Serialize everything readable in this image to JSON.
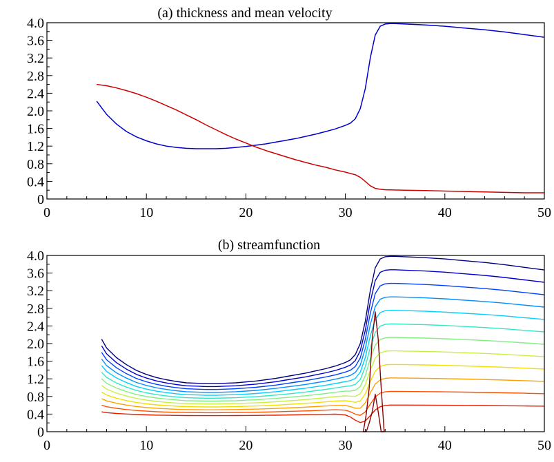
{
  "chart_data": [
    {
      "type": "line",
      "title": "(a) thickness and mean velocity",
      "xlim": [
        0,
        50
      ],
      "ylim": [
        0,
        4.0
      ],
      "xticks": [
        "0",
        "10",
        "20",
        "30",
        "40",
        "50"
      ],
      "yticks": [
        "0",
        "0.4",
        "0.8",
        "1.2",
        "1.6",
        "2.0",
        "2.4",
        "2.8",
        "3.2",
        "3.6",
        "4.0"
      ],
      "grid": false,
      "series": [
        {
          "color": "#0000cc",
          "x": [
            5,
            6,
            7,
            8,
            9,
            10,
            11,
            12,
            13,
            14,
            15,
            16,
            17,
            18,
            19,
            20,
            21,
            22,
            23,
            24,
            25,
            26,
            27,
            28,
            29,
            30,
            30.5,
            31,
            31.5,
            32,
            32.5,
            33,
            33.5,
            34,
            34.5,
            35,
            36,
            38,
            40,
            42,
            44,
            46,
            48,
            50
          ],
          "y": [
            2.22,
            1.92,
            1.7,
            1.53,
            1.41,
            1.32,
            1.25,
            1.2,
            1.17,
            1.15,
            1.14,
            1.14,
            1.14,
            1.15,
            1.17,
            1.19,
            1.22,
            1.25,
            1.29,
            1.33,
            1.37,
            1.42,
            1.47,
            1.53,
            1.59,
            1.67,
            1.72,
            1.82,
            2.05,
            2.5,
            3.2,
            3.72,
            3.92,
            3.97,
            3.98,
            3.98,
            3.97,
            3.95,
            3.92,
            3.88,
            3.84,
            3.79,
            3.73,
            3.67
          ]
        },
        {
          "color": "#cc0000",
          "x": [
            5,
            6,
            7,
            8,
            9,
            10,
            11,
            12,
            13,
            14,
            15,
            16,
            17,
            18,
            19,
            20,
            21,
            22,
            23,
            24,
            25,
            26,
            27,
            28,
            29,
            30,
            31,
            31.5,
            32,
            32.5,
            33,
            33.5,
            34,
            36,
            38,
            40,
            42,
            44,
            46,
            48,
            50
          ],
          "y": [
            2.6,
            2.57,
            2.52,
            2.46,
            2.39,
            2.31,
            2.22,
            2.12,
            2.02,
            1.91,
            1.8,
            1.68,
            1.57,
            1.46,
            1.36,
            1.27,
            1.18,
            1.1,
            1.03,
            0.96,
            0.89,
            0.83,
            0.77,
            0.72,
            0.66,
            0.61,
            0.55,
            0.49,
            0.4,
            0.3,
            0.24,
            0.22,
            0.21,
            0.2,
            0.19,
            0.18,
            0.17,
            0.16,
            0.15,
            0.14,
            0.14
          ]
        }
      ]
    },
    {
      "type": "line",
      "title": "(b) streamfunction",
      "xlim": [
        0,
        50
      ],
      "ylim": [
        0,
        4.0
      ],
      "xticks": [
        "0",
        "10",
        "20",
        "30",
        "40",
        "50"
      ],
      "yticks": [
        "0",
        "0.4",
        "0.8",
        "1.2",
        "1.6",
        "2.0",
        "2.4",
        "2.8",
        "3.2",
        "3.6",
        "4.0"
      ],
      "grid": false,
      "contour_colors": [
        "#000080",
        "#0000cc",
        "#0040ff",
        "#0090ff",
        "#00d0ff",
        "#30e8c8",
        "#80f080",
        "#c8f040",
        "#f0e000",
        "#ffa000",
        "#ff5000",
        "#e02000"
      ],
      "contour_fractions": [
        1.0,
        0.917,
        0.833,
        0.75,
        0.667,
        0.583,
        0.5,
        0.417,
        0.333,
        0.25,
        0.167,
        0.083
      ],
      "top_surface_x": [
        5.5,
        6,
        7,
        8,
        9,
        10,
        11,
        12,
        13,
        14,
        15,
        16,
        17,
        18,
        19,
        20,
        21,
        22,
        23,
        24,
        25,
        26,
        27,
        28,
        29,
        30,
        30.5,
        31,
        31.5,
        32,
        32.5,
        33,
        33.5,
        34,
        34.5,
        35,
        36,
        38,
        40,
        42,
        44,
        46,
        48,
        50
      ],
      "top_surface_y": [
        2.1,
        1.9,
        1.68,
        1.52,
        1.39,
        1.3,
        1.23,
        1.18,
        1.14,
        1.11,
        1.1,
        1.09,
        1.09,
        1.1,
        1.11,
        1.13,
        1.15,
        1.18,
        1.21,
        1.25,
        1.29,
        1.33,
        1.38,
        1.43,
        1.49,
        1.57,
        1.63,
        1.75,
        2.0,
        2.5,
        3.2,
        3.72,
        3.92,
        3.97,
        3.98,
        3.98,
        3.97,
        3.95,
        3.92,
        3.88,
        3.84,
        3.79,
        3.73,
        3.67
      ],
      "bottom_offset": 0.3,
      "closed_contour": {
        "color": "#8b0000",
        "x": [
          31.8,
          32.1,
          32.4,
          32.7,
          33.0,
          33.3,
          33.6,
          33.9,
          33.6,
          33.3,
          33.0,
          32.7,
          32.4,
          32.1,
          31.8
        ],
        "y": [
          0,
          0.4,
          1.0,
          2.1,
          2.72,
          2.1,
          1.0,
          0,
          0,
          0.45,
          0.85,
          0.45,
          0.2,
          0,
          0
        ]
      }
    }
  ]
}
